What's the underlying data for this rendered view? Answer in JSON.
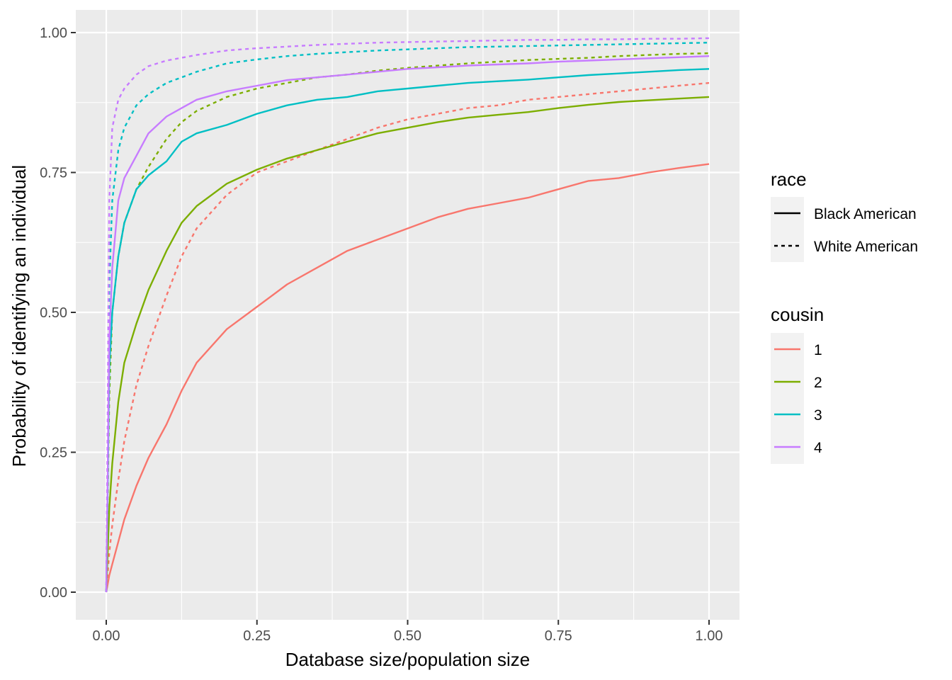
{
  "chart_data": {
    "type": "line",
    "title": "",
    "xlabel": "Database size/population size",
    "ylabel": "Probability of identifying an individual",
    "xlim": [
      0,
      1
    ],
    "ylim": [
      0,
      1
    ],
    "x_ticks": [
      "0.00",
      "0.25",
      "0.50",
      "0.75",
      "1.00"
    ],
    "y_ticks": [
      "0.00",
      "0.25",
      "0.50",
      "0.75",
      "1.00"
    ],
    "grid": true,
    "legend_race": {
      "title": "race",
      "items": [
        {
          "label": "Black American",
          "linetype": "solid"
        },
        {
          "label": "White American",
          "linetype": "dashed"
        }
      ]
    },
    "legend_cousin": {
      "title": "cousin",
      "items": [
        {
          "label": "1",
          "color": "#F8766D"
        },
        {
          "label": "2",
          "color": "#7CAE00"
        },
        {
          "label": "3",
          "color": "#00BFC4"
        },
        {
          "label": "4",
          "color": "#C77CFF"
        }
      ]
    },
    "x": [
      0,
      0.005,
      0.01,
      0.02,
      0.03,
      0.05,
      0.07,
      0.1,
      0.125,
      0.15,
      0.2,
      0.25,
      0.3,
      0.35,
      0.4,
      0.45,
      0.5,
      0.55,
      0.6,
      0.65,
      0.7,
      0.75,
      0.8,
      0.85,
      0.9,
      0.95,
      1.0
    ],
    "series": [
      {
        "cousin": "1",
        "race": "Black American",
        "color": "#F8766D",
        "dash": "solid",
        "values": [
          0,
          0.03,
          0.05,
          0.09,
          0.13,
          0.19,
          0.24,
          0.3,
          0.36,
          0.41,
          0.47,
          0.51,
          0.55,
          0.58,
          0.61,
          0.63,
          0.65,
          0.67,
          0.685,
          0.695,
          0.705,
          0.72,
          0.735,
          0.74,
          0.75,
          0.758,
          0.765
        ]
      },
      {
        "cousin": "1",
        "race": "White American",
        "color": "#F8766D",
        "dash": "dashed",
        "values": [
          0,
          0.07,
          0.12,
          0.2,
          0.27,
          0.37,
          0.44,
          0.53,
          0.6,
          0.65,
          0.71,
          0.75,
          0.77,
          0.79,
          0.81,
          0.83,
          0.845,
          0.855,
          0.865,
          0.87,
          0.88,
          0.885,
          0.89,
          0.895,
          0.9,
          0.905,
          0.91
        ]
      },
      {
        "cousin": "2",
        "race": "Black American",
        "color": "#7CAE00",
        "dash": "solid",
        "values": [
          0,
          0.15,
          0.23,
          0.34,
          0.41,
          0.48,
          0.54,
          0.61,
          0.66,
          0.69,
          0.73,
          0.755,
          0.775,
          0.79,
          0.805,
          0.82,
          0.83,
          0.84,
          0.848,
          0.853,
          0.858,
          0.865,
          0.871,
          0.876,
          0.879,
          0.882,
          0.885
        ]
      },
      {
        "cousin": "2",
        "race": "White American",
        "color": "#7CAE00",
        "dash": "dashed",
        "values": [
          0,
          0.35,
          0.5,
          0.6,
          0.66,
          0.72,
          0.76,
          0.81,
          0.84,
          0.86,
          0.885,
          0.9,
          0.91,
          0.92,
          0.925,
          0.932,
          0.937,
          0.941,
          0.945,
          0.948,
          0.951,
          0.953,
          0.955,
          0.958,
          0.96,
          0.962,
          0.963
        ]
      },
      {
        "cousin": "3",
        "race": "Black American",
        "color": "#00BFC4",
        "dash": "solid",
        "values": [
          0,
          0.4,
          0.5,
          0.6,
          0.66,
          0.72,
          0.745,
          0.77,
          0.805,
          0.82,
          0.835,
          0.855,
          0.87,
          0.88,
          0.885,
          0.895,
          0.9,
          0.905,
          0.91,
          0.913,
          0.916,
          0.92,
          0.924,
          0.927,
          0.93,
          0.933,
          0.935
        ]
      },
      {
        "cousin": "3",
        "race": "White American",
        "color": "#00BFC4",
        "dash": "dashed",
        "values": [
          0,
          0.55,
          0.7,
          0.79,
          0.83,
          0.87,
          0.89,
          0.91,
          0.92,
          0.93,
          0.945,
          0.952,
          0.958,
          0.962,
          0.965,
          0.968,
          0.97,
          0.972,
          0.974,
          0.975,
          0.976,
          0.977,
          0.978,
          0.979,
          0.98,
          0.981,
          0.982
        ]
      },
      {
        "cousin": "4",
        "race": "Black American",
        "color": "#C77CFF",
        "dash": "solid",
        "values": [
          0,
          0.45,
          0.58,
          0.7,
          0.74,
          0.78,
          0.82,
          0.85,
          0.865,
          0.88,
          0.895,
          0.905,
          0.915,
          0.92,
          0.925,
          0.93,
          0.935,
          0.938,
          0.941,
          0.943,
          0.945,
          0.948,
          0.95,
          0.952,
          0.954,
          0.956,
          0.958
        ]
      },
      {
        "cousin": "4",
        "race": "White American",
        "color": "#C77CFF",
        "dash": "dashed",
        "values": [
          0,
          0.7,
          0.83,
          0.88,
          0.9,
          0.925,
          0.94,
          0.95,
          0.955,
          0.96,
          0.968,
          0.972,
          0.975,
          0.978,
          0.98,
          0.982,
          0.983,
          0.984,
          0.985,
          0.986,
          0.987,
          0.987,
          0.988,
          0.988,
          0.989,
          0.989,
          0.99
        ]
      }
    ]
  }
}
